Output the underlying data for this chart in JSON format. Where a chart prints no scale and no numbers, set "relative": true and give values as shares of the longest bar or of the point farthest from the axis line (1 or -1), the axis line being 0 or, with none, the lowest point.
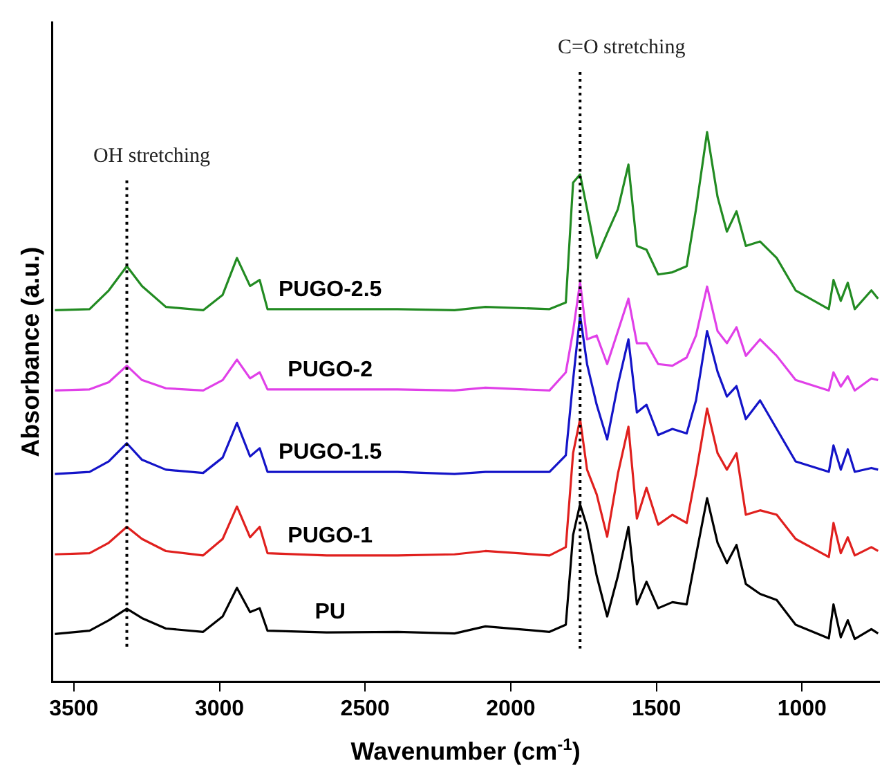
{
  "chart_data": {
    "type": "line",
    "xlabel": "Wavenumber (cm$^{-1}$)",
    "ylabel": "Absorbance (a.u.)",
    "relative": true,
    "xlim": [
      3575,
      735
    ],
    "xticks": [
      3500,
      3000,
      2500,
      2000,
      1500,
      1000
    ],
    "tick_labels": "x",
    "grid": false,
    "legend": false,
    "marker": "none",
    "line_style": "solid",
    "x": [
      3565,
      3446,
      3380,
      3318,
      3266,
      3184,
      3056,
      2989,
      2940,
      2895,
      2862,
      2835,
      2632,
      2388,
      2193,
      2087,
      1867,
      1811,
      1786,
      1762,
      1738,
      1705,
      1669,
      1632,
      1596,
      1567,
      1534,
      1494,
      1445,
      1396,
      1364,
      1326,
      1290,
      1258,
      1225,
      1193,
      1144,
      1087,
      1022,
      908,
      892,
      867,
      843,
      819,
      762,
      739
    ],
    "series": [
      {
        "name": "PU",
        "color": "#000000",
        "values": [
          0.087,
          0.093,
          0.112,
          0.133,
          0.116,
          0.097,
          0.091,
          0.119,
          0.171,
          0.127,
          0.134,
          0.093,
          0.09,
          0.091,
          0.088,
          0.101,
          0.091,
          0.104,
          0.267,
          0.323,
          0.282,
          0.193,
          0.119,
          0.193,
          0.282,
          0.141,
          0.182,
          0.134,
          0.145,
          0.141,
          0.23,
          0.334,
          0.253,
          0.216,
          0.249,
          0.178,
          0.16,
          0.149,
          0.104,
          0.079,
          0.141,
          0.081,
          0.112,
          0.078,
          0.096,
          0.088
        ]
      },
      {
        "name": "PUGO-1",
        "color": "#e0201e",
        "values": [
          0.232,
          0.234,
          0.253,
          0.282,
          0.26,
          0.238,
          0.23,
          0.26,
          0.319,
          0.263,
          0.282,
          0.234,
          0.23,
          0.23,
          0.232,
          0.238,
          0.23,
          0.245,
          0.416,
          0.478,
          0.386,
          0.341,
          0.264,
          0.379,
          0.464,
          0.297,
          0.353,
          0.286,
          0.304,
          0.289,
          0.379,
          0.497,
          0.416,
          0.386,
          0.416,
          0.304,
          0.312,
          0.304,
          0.26,
          0.227,
          0.289,
          0.234,
          0.263,
          0.23,
          0.245,
          0.238
        ]
      },
      {
        "name": "PUGO-1.5",
        "color": "#1414c8",
        "values": [
          0.378,
          0.382,
          0.401,
          0.434,
          0.404,
          0.386,
          0.38,
          0.408,
          0.471,
          0.41,
          0.425,
          0.382,
          0.382,
          0.382,
          0.378,
          0.382,
          0.382,
          0.412,
          0.549,
          0.667,
          0.578,
          0.504,
          0.441,
          0.541,
          0.623,
          0.49,
          0.504,
          0.449,
          0.46,
          0.452,
          0.512,
          0.638,
          0.564,
          0.519,
          0.538,
          0.478,
          0.512,
          0.46,
          0.401,
          0.382,
          0.43,
          0.386,
          0.423,
          0.382,
          0.389,
          0.386
        ]
      },
      {
        "name": "PUGO-2",
        "color": "#e040e8",
        "values": [
          0.53,
          0.532,
          0.545,
          0.575,
          0.549,
          0.534,
          0.53,
          0.549,
          0.586,
          0.552,
          0.563,
          0.532,
          0.532,
          0.532,
          0.53,
          0.535,
          0.53,
          0.563,
          0.638,
          0.727,
          0.623,
          0.63,
          0.578,
          0.638,
          0.697,
          0.616,
          0.616,
          0.578,
          0.575,
          0.59,
          0.63,
          0.719,
          0.638,
          0.616,
          0.645,
          0.593,
          0.623,
          0.593,
          0.549,
          0.53,
          0.563,
          0.537,
          0.556,
          0.53,
          0.552,
          0.549
        ]
      },
      {
        "name": "PUGO-2.5",
        "color": "#228b22",
        "values": [
          0.676,
          0.678,
          0.712,
          0.756,
          0.72,
          0.682,
          0.676,
          0.704,
          0.771,
          0.72,
          0.731,
          0.678,
          0.678,
          0.678,
          0.676,
          0.682,
          0.678,
          0.69,
          0.908,
          0.923,
          0.86,
          0.771,
          0.816,
          0.86,
          0.941,
          0.793,
          0.786,
          0.741,
          0.745,
          0.756,
          0.86,
          1.0,
          0.882,
          0.819,
          0.856,
          0.793,
          0.801,
          0.771,
          0.712,
          0.678,
          0.731,
          0.693,
          0.726,
          0.678,
          0.712,
          0.697
        ]
      }
    ],
    "ref_lines": [
      {
        "axis": "x",
        "value": 3318,
        "label": "OH stretching",
        "line_style": "dotted",
        "color": "#000000"
      },
      {
        "axis": "x",
        "value": 1762,
        "label": "C=O stretching",
        "line_style": "dotted",
        "color": "#000000"
      }
    ]
  }
}
